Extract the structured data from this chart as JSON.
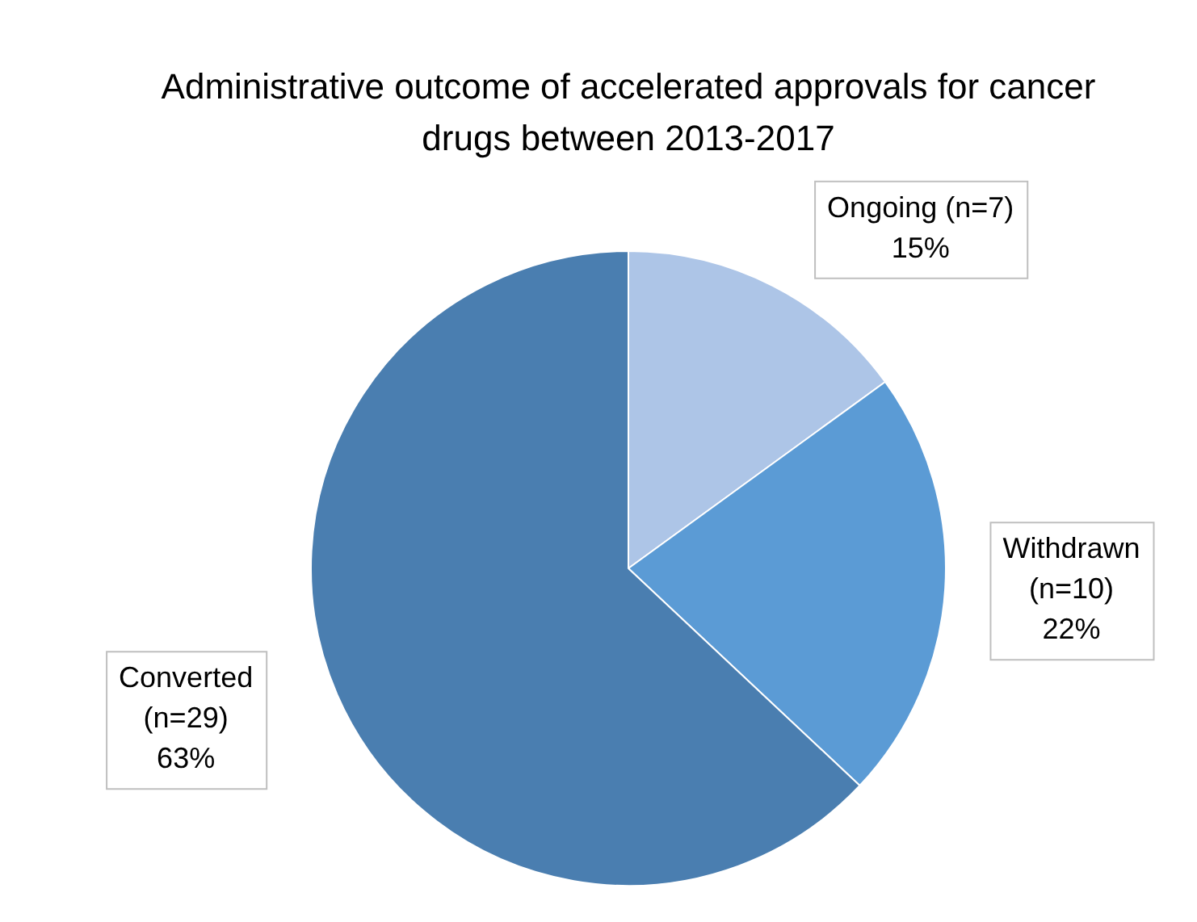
{
  "chart_data": {
    "type": "pie",
    "title": "Administrative outcome of accelerated approvals for cancer drugs between 2013-2017",
    "categories": [
      "Ongoing (n=7)",
      "Withdrawn (n=10)",
      "Converted (n=29)"
    ],
    "values": [
      15,
      22,
      63
    ],
    "value_labels": [
      "15%",
      "22%",
      "63%"
    ],
    "colors": [
      "#adc5e7",
      "#5b9bd5",
      "#4a7eb0"
    ],
    "legend": false
  }
}
